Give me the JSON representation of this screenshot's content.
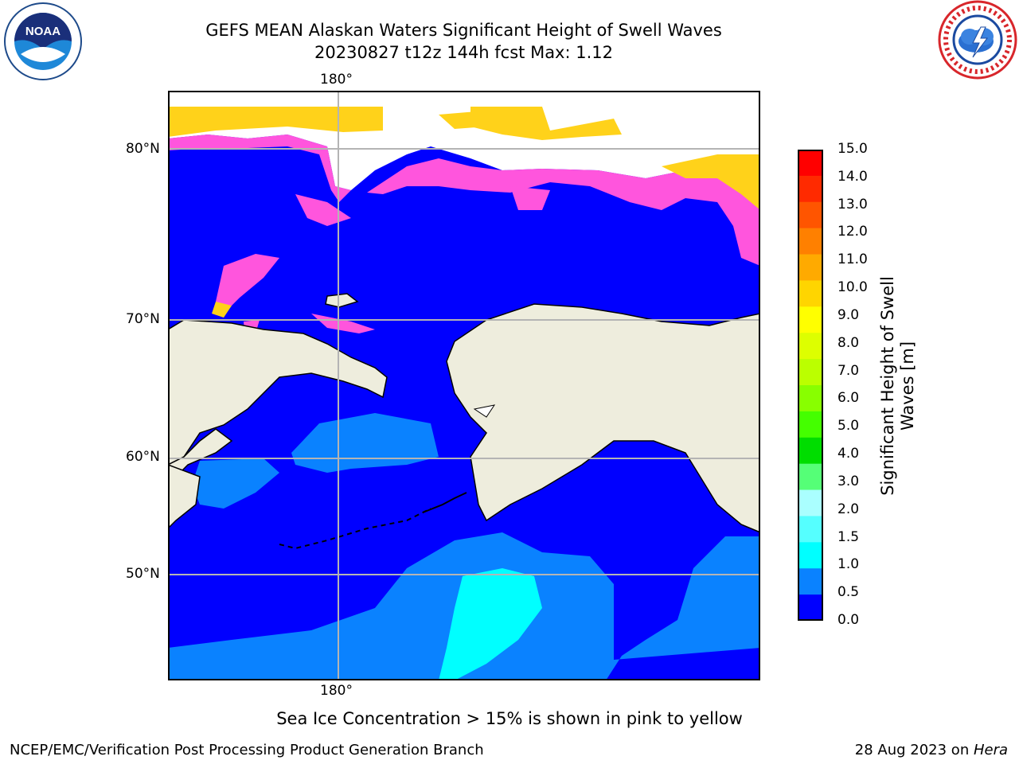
{
  "title": {
    "line1": "GEFS MEAN Alaskan Waters Significant Height of Swell Waves",
    "line2": "20230827 t12z 144h fcst   Max: 1.12"
  },
  "map": {
    "longitude_labels": {
      "top": "180°",
      "bottom": "180°"
    },
    "latitude_labels": [
      "80°N",
      "70°N",
      "60°N",
      "50°N"
    ],
    "gridlines": true,
    "colors": {
      "land": "#eeeddd",
      "sea_ice_white": "#ffffff",
      "ice_pink": "#ff55dd",
      "ice_yellow": "#ffd21a",
      "swell_0_0_5": "#0000ff",
      "swell_0_5_1": "#0a82ff",
      "swell_1_1_5": "#00ffff",
      "grid": "#b4b4b4"
    }
  },
  "colorbar": {
    "label": "Significant Height of Swell Waves [m]",
    "label_lines": [
      "Significant Height of Swell",
      "Waves [m]"
    ],
    "ticks": [
      "15.0",
      "14.0",
      "13.0",
      "12.0",
      "11.0",
      "10.0",
      "9.0",
      "8.0",
      "7.0",
      "6.0",
      "5.0",
      "4.0",
      "3.0",
      "2.0",
      "1.5",
      "1.0",
      "0.5",
      "0.0"
    ],
    "colors_top_to_bottom": [
      "#ff0000",
      "#ff2a00",
      "#ff5500",
      "#ff8000",
      "#ffaa00",
      "#ffd500",
      "#ffff00",
      "#ddff00",
      "#bbff00",
      "#88ff00",
      "#44ff00",
      "#00dd00",
      "#55ff77",
      "#aaffff",
      "#55ffff",
      "#00ffff",
      "#0a82ff",
      "#0000ff"
    ]
  },
  "note": "Sea Ice Concentration > 15% is shown in pink to yellow",
  "footer": {
    "left": "NCEP/EMC/Verification Post Processing Product Generation Branch",
    "right_prefix": "28 Aug 2023 on ",
    "right_host": "Hera"
  }
}
